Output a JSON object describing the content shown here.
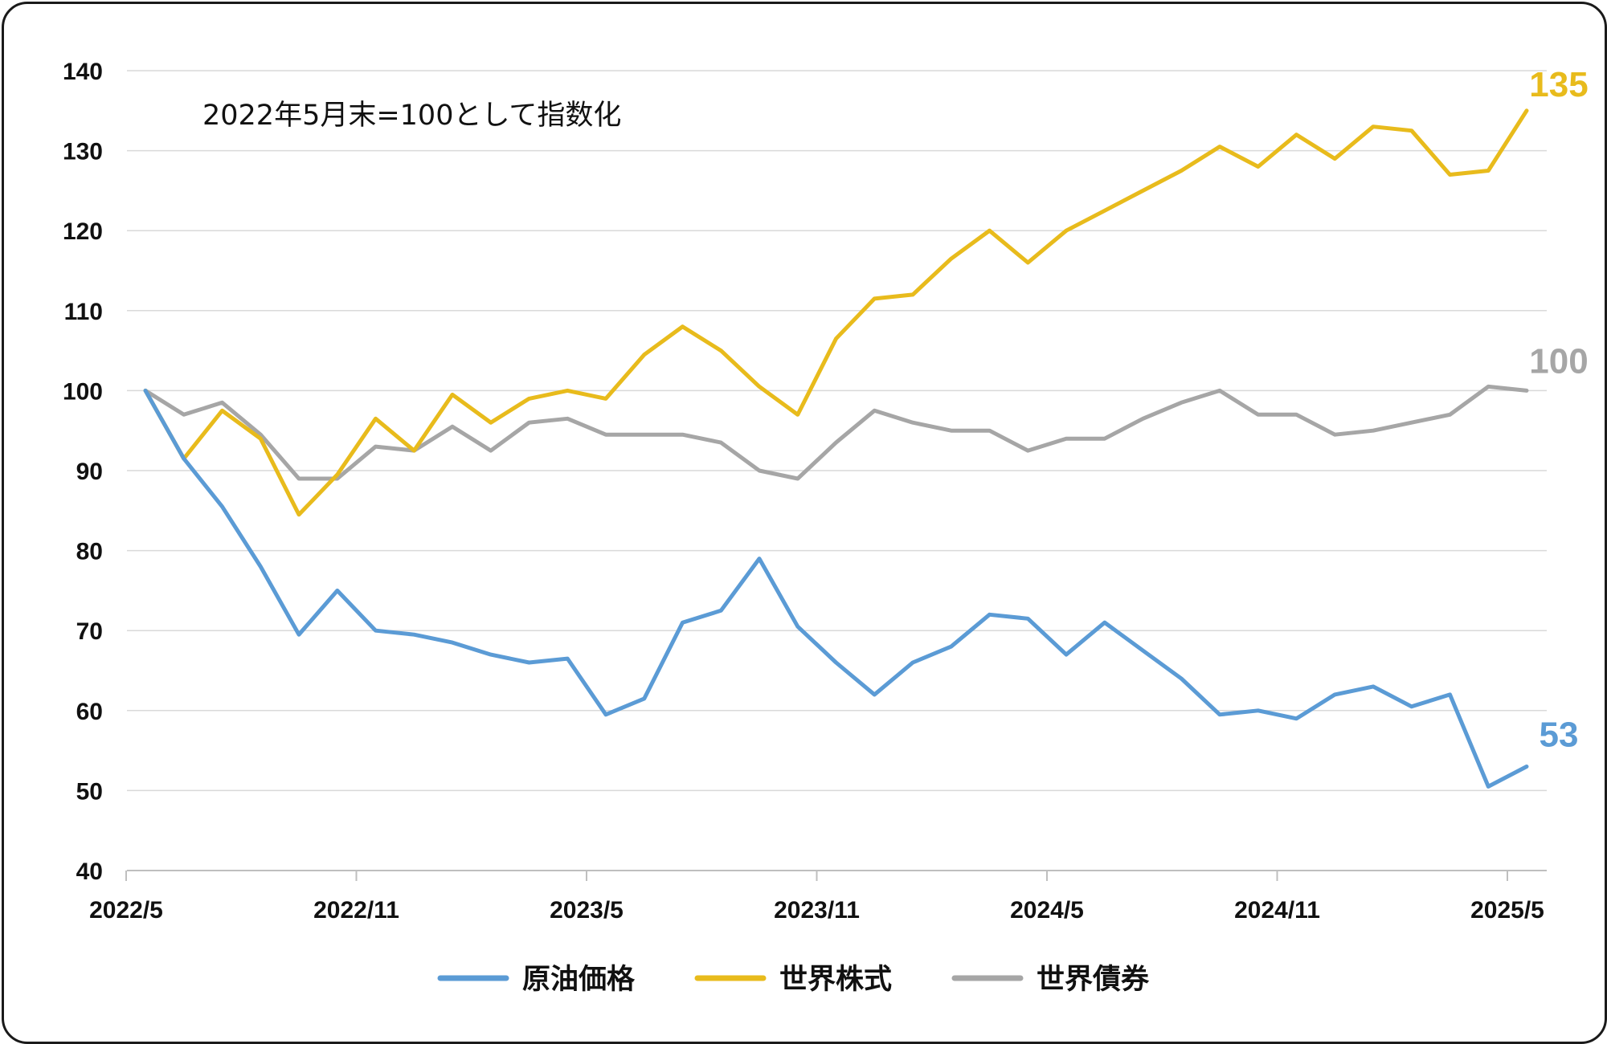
{
  "chart_data": {
    "type": "line",
    "annotation": "2022年5月末=100として指数化",
    "ylim": [
      40,
      140
    ],
    "y_ticks": [
      "140",
      "130",
      "120",
      "110",
      "100",
      "90",
      "80",
      "70",
      "60",
      "50",
      "40"
    ],
    "x_tick_labels": [
      "2022/5",
      "2022/11",
      "2023/5",
      "2023/11",
      "2024/5",
      "2024/11",
      "2025/5"
    ],
    "x_tick_indices": [
      0,
      6,
      12,
      18,
      24,
      30,
      36
    ],
    "grid": true,
    "legend_position": "bottom-center",
    "series": [
      {
        "name": "原油価格",
        "color": "#5b9bd5",
        "end_label": "53",
        "values": [
          100,
          91.5,
          85.5,
          78,
          69.5,
          75,
          70,
          69.5,
          68.5,
          67,
          66,
          66.5,
          59.5,
          61.5,
          71,
          72.5,
          79,
          70.5,
          66,
          62,
          66,
          68,
          72,
          71.5,
          67,
          71,
          67.5,
          64,
          59.5,
          60,
          59,
          62,
          63,
          60.5,
          62,
          50.5,
          53
        ]
      },
      {
        "name": "世界株式",
        "color": "#e8bb1c",
        "end_label": "135",
        "values": [
          100,
          91.5,
          97.5,
          94,
          84.5,
          89.5,
          96.5,
          92.5,
          99.5,
          96,
          99,
          100,
          99,
          104.5,
          108,
          105,
          100.5,
          97,
          106.5,
          111.5,
          112,
          116.5,
          120,
          116,
          120,
          122.5,
          125,
          127.5,
          130.5,
          128,
          132,
          129,
          133,
          132.5,
          127,
          127.5,
          135
        ]
      },
      {
        "name": "世界債券",
        "color": "#a6a6a6",
        "end_label": "100",
        "values": [
          100,
          97,
          98.5,
          94.5,
          89,
          89,
          93,
          92.5,
          95.5,
          92.5,
          96,
          96.5,
          94.5,
          94.5,
          94.5,
          93.5,
          90,
          89,
          93.5,
          97.5,
          96,
          95,
          95,
          92.5,
          94,
          94,
          96.5,
          98.5,
          100,
          97,
          97,
          94.5,
          95,
          96,
          97,
          100.5,
          100
        ]
      }
    ]
  }
}
